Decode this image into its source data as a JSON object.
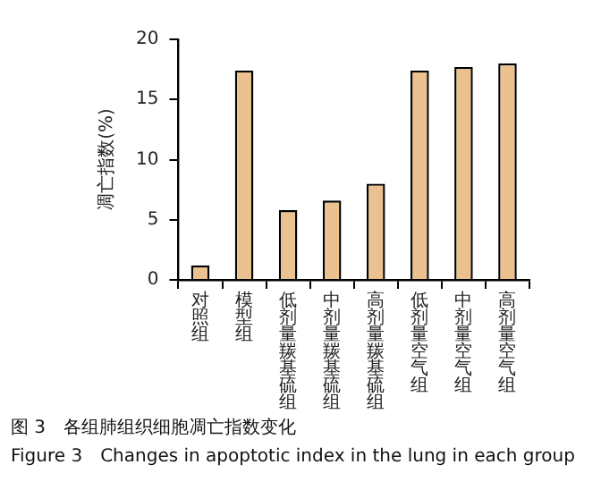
{
  "chart_data": {
    "type": "bar",
    "ylabel": "凋亡指数(%)",
    "categories": [
      "对照组",
      "模型组",
      "低剂量羰基硫组",
      "中剂量羰基硫组",
      "高剂量羰基硫组",
      "低剂量空气组",
      "中剂量空气组",
      "高剂量空气组"
    ],
    "values": [
      1.2,
      17.4,
      5.8,
      6.6,
      8.0,
      17.4,
      17.7,
      18.0
    ],
    "color": "#ebc18f",
    "ylim": [
      0,
      20
    ],
    "yticks": [
      0,
      5,
      10,
      15,
      20
    ],
    "grid": false,
    "legend": false,
    "annotations": [
      "图 3　各组肺组织细胞凋亡指数变化",
      "Figure 3　Changes in apoptotic index in the lung in each group"
    ]
  }
}
